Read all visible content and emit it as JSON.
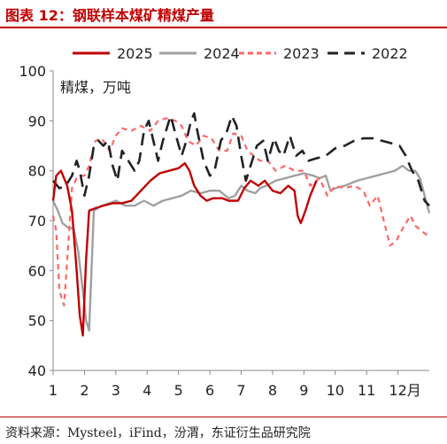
{
  "figure": {
    "title": "图表 12：钢联样本煤矿精煤产量",
    "source": "资料来源：Mysteel，iFind，汾渭，东证衍生品研究院",
    "title_color": "#c00000"
  },
  "chart_data": {
    "type": "line",
    "ylabel": "精煤，万吨",
    "xlabel": "月",
    "ylim": [
      40,
      100
    ],
    "yticks": [
      40,
      50,
      60,
      70,
      80,
      90,
      100
    ],
    "xlim": [
      1,
      13
    ],
    "xticks": [
      1,
      2,
      3,
      4,
      5,
      6,
      7,
      8,
      9,
      10,
      11,
      12
    ],
    "x_unit": "月",
    "grid": false,
    "legend": "top",
    "series": [
      {
        "name": "2025",
        "color": "#c00000",
        "dash": "solid",
        "points": [
          [
            1.0,
            74
          ],
          [
            1.1,
            79
          ],
          [
            1.25,
            80
          ],
          [
            1.45,
            77
          ],
          [
            1.6,
            72
          ],
          [
            1.75,
            60
          ],
          [
            1.85,
            51
          ],
          [
            1.95,
            47
          ],
          [
            2.05,
            62
          ],
          [
            2.15,
            72
          ],
          [
            2.35,
            72.5
          ],
          [
            2.6,
            73
          ],
          [
            2.9,
            73.5
          ],
          [
            3.2,
            73.5
          ],
          [
            3.5,
            74
          ],
          [
            3.8,
            76
          ],
          [
            4.1,
            78
          ],
          [
            4.4,
            79.5
          ],
          [
            4.7,
            80
          ],
          [
            5.0,
            80.5
          ],
          [
            5.2,
            81.5
          ],
          [
            5.35,
            80
          ],
          [
            5.5,
            77
          ],
          [
            5.7,
            75
          ],
          [
            5.9,
            74
          ],
          [
            6.1,
            74.5
          ],
          [
            6.4,
            74.5
          ],
          [
            6.6,
            74
          ],
          [
            6.9,
            74
          ],
          [
            7.1,
            76.5
          ],
          [
            7.3,
            78
          ],
          [
            7.55,
            77
          ],
          [
            7.75,
            78
          ],
          [
            8.0,
            76
          ],
          [
            8.25,
            75.5
          ],
          [
            8.5,
            77
          ],
          [
            8.7,
            76
          ],
          [
            8.8,
            71
          ],
          [
            8.9,
            69.5
          ],
          [
            9.05,
            72
          ],
          [
            9.2,
            75
          ],
          [
            9.4,
            78
          ]
        ]
      },
      {
        "name": "2024",
        "color": "#a0a0a0",
        "dash": "solid",
        "points": [
          [
            1.0,
            74
          ],
          [
            1.15,
            72
          ],
          [
            1.3,
            69.5
          ],
          [
            1.5,
            68.5
          ],
          [
            1.65,
            68.5
          ],
          [
            1.8,
            64
          ],
          [
            1.95,
            56
          ],
          [
            2.05,
            50
          ],
          [
            2.15,
            48
          ],
          [
            2.3,
            72
          ],
          [
            2.55,
            73
          ],
          [
            2.8,
            73.5
          ],
          [
            3.0,
            74
          ],
          [
            3.3,
            73
          ],
          [
            3.6,
            73
          ],
          [
            3.9,
            74
          ],
          [
            4.2,
            73
          ],
          [
            4.5,
            74
          ],
          [
            4.8,
            74.5
          ],
          [
            5.1,
            75
          ],
          [
            5.4,
            76
          ],
          [
            5.7,
            75.5
          ],
          [
            6.0,
            76
          ],
          [
            6.3,
            76
          ],
          [
            6.6,
            74.5
          ],
          [
            6.8,
            75
          ],
          [
            7.0,
            77
          ],
          [
            7.2,
            76
          ],
          [
            7.45,
            75.5
          ],
          [
            7.6,
            76.5
          ],
          [
            7.8,
            77
          ],
          [
            8.1,
            78
          ],
          [
            8.4,
            78.5
          ],
          [
            8.7,
            79
          ],
          [
            9.0,
            79.5
          ],
          [
            9.3,
            79
          ],
          [
            9.5,
            78.5
          ],
          [
            9.7,
            79
          ],
          [
            9.85,
            76
          ],
          [
            10.0,
            76.5
          ],
          [
            10.3,
            77
          ],
          [
            10.7,
            78
          ],
          [
            11.0,
            78.5
          ],
          [
            11.3,
            79
          ],
          [
            11.6,
            79.5
          ],
          [
            11.9,
            80
          ],
          [
            12.15,
            81
          ],
          [
            12.35,
            80
          ],
          [
            12.55,
            80
          ],
          [
            12.7,
            78.5
          ],
          [
            12.85,
            75
          ],
          [
            13.0,
            71.5
          ]
        ]
      },
      {
        "name": "2023",
        "color": "#ff6666",
        "dash": "dashed",
        "points": [
          [
            1.0,
            71
          ],
          [
            1.1,
            68
          ],
          [
            1.2,
            56
          ],
          [
            1.35,
            53
          ],
          [
            1.45,
            62
          ],
          [
            1.6,
            76.5
          ],
          [
            1.75,
            78.5
          ],
          [
            1.9,
            79
          ],
          [
            2.0,
            79
          ],
          [
            2.15,
            81
          ],
          [
            2.35,
            86
          ],
          [
            2.55,
            86.5
          ],
          [
            2.8,
            84
          ],
          [
            3.0,
            87
          ],
          [
            3.2,
            88.5
          ],
          [
            3.5,
            88
          ],
          [
            3.8,
            89
          ],
          [
            4.1,
            88
          ],
          [
            4.35,
            90
          ],
          [
            4.6,
            90.5
          ],
          [
            4.9,
            90
          ],
          [
            5.1,
            89
          ],
          [
            5.3,
            86
          ],
          [
            5.55,
            85
          ],
          [
            5.8,
            87
          ],
          [
            6.05,
            86.5
          ],
          [
            6.3,
            84
          ],
          [
            6.55,
            84
          ],
          [
            6.75,
            87.5
          ],
          [
            7.0,
            87
          ],
          [
            7.2,
            84
          ],
          [
            7.4,
            83
          ],
          [
            7.6,
            82
          ],
          [
            7.85,
            82
          ],
          [
            8.1,
            80
          ],
          [
            8.4,
            81
          ],
          [
            8.7,
            80
          ],
          [
            9.0,
            80
          ],
          [
            9.2,
            77
          ],
          [
            9.5,
            78.5
          ],
          [
            9.75,
            75
          ],
          [
            10.0,
            77
          ],
          [
            10.3,
            76.5
          ],
          [
            10.6,
            77
          ],
          [
            10.9,
            76
          ],
          [
            11.1,
            73
          ],
          [
            11.35,
            75
          ],
          [
            11.55,
            70
          ],
          [
            11.75,
            65
          ],
          [
            11.95,
            66
          ],
          [
            12.2,
            69
          ],
          [
            12.4,
            71
          ],
          [
            12.55,
            69
          ],
          [
            12.75,
            68
          ],
          [
            12.95,
            67
          ]
        ]
      },
      {
        "name": "2022",
        "color": "#222222",
        "dash": "longdash",
        "points": [
          [
            1.0,
            78
          ],
          [
            1.2,
            76.5
          ],
          [
            1.4,
            77
          ],
          [
            1.6,
            79
          ],
          [
            1.75,
            82
          ],
          [
            1.85,
            80
          ],
          [
            2.0,
            75
          ],
          [
            2.15,
            79
          ],
          [
            2.3,
            85
          ],
          [
            2.45,
            86
          ],
          [
            2.6,
            85
          ],
          [
            2.75,
            86
          ],
          [
            2.9,
            81
          ],
          [
            3.05,
            78
          ],
          [
            3.2,
            84
          ],
          [
            3.4,
            82
          ],
          [
            3.6,
            80
          ],
          [
            3.75,
            82
          ],
          [
            3.9,
            88
          ],
          [
            4.05,
            90
          ],
          [
            4.2,
            86
          ],
          [
            4.35,
            82
          ],
          [
            4.5,
            86
          ],
          [
            4.6,
            88
          ],
          [
            4.75,
            91
          ],
          [
            4.9,
            87.5
          ],
          [
            5.1,
            83
          ],
          [
            5.25,
            86
          ],
          [
            5.4,
            90
          ],
          [
            5.5,
            91.5
          ],
          [
            5.6,
            88
          ],
          [
            5.8,
            82
          ],
          [
            6.0,
            79
          ],
          [
            6.15,
            80
          ],
          [
            6.35,
            86
          ],
          [
            6.55,
            88
          ],
          [
            6.7,
            91
          ],
          [
            6.85,
            89
          ],
          [
            7.0,
            83
          ],
          [
            7.15,
            78
          ],
          [
            7.3,
            81
          ],
          [
            7.5,
            85
          ],
          [
            7.7,
            86
          ],
          [
            7.85,
            82
          ],
          [
            8.05,
            86.5
          ],
          [
            8.2,
            84
          ],
          [
            8.35,
            83
          ],
          [
            8.55,
            87
          ],
          [
            8.75,
            83
          ],
          [
            8.95,
            84
          ],
          [
            9.15,
            82
          ],
          [
            9.4,
            82.5
          ],
          [
            9.7,
            83
          ],
          [
            10.0,
            84.5
          ],
          [
            10.3,
            85
          ],
          [
            10.6,
            86
          ],
          [
            10.9,
            86.5
          ],
          [
            11.2,
            86.5
          ],
          [
            11.5,
            86
          ],
          [
            11.8,
            85.5
          ],
          [
            12.05,
            85
          ],
          [
            12.25,
            83
          ],
          [
            12.45,
            80
          ],
          [
            12.65,
            78
          ],
          [
            12.85,
            74
          ],
          [
            13.0,
            73
          ]
        ]
      }
    ]
  }
}
